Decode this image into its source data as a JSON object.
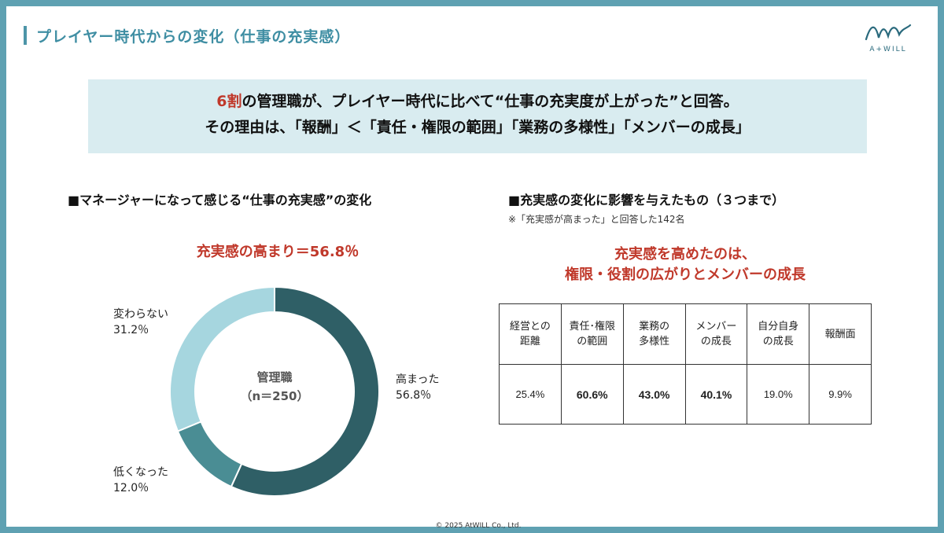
{
  "page": {
    "title": "プレイヤー時代からの変化（仕事の充実感）",
    "logo_text": "A+WILL",
    "footer": "© 2025 AtWILL  Co., Ltd."
  },
  "headline": {
    "line1_red": "6割",
    "line1_rest": "の管理職が、プレイヤー時代に比べて“仕事の充実度が上がった”と回答。",
    "line2": "その理由は、「報酬」＜「責任・権限の範囲」「業務の多様性」「メンバーの成長」"
  },
  "left": {
    "heading": "■マネージャーになって感じる“仕事の充実感”の変化",
    "highlight": "充実感の高まり＝56.8％",
    "center_line1": "管理職",
    "center_line2": "（n＝250）"
  },
  "right": {
    "heading": "■充実感の変化に影響を与えたもの（３つまで）",
    "note": "※「充実感が高まった」と回答した142名",
    "highlight_line1": "充実感を高めたのは、",
    "highlight_line2": "権限・役割の広がりとメンバーの成長"
  },
  "colors": {
    "frame": "#5fa1b2",
    "accent_red": "#c0392b",
    "headline_bg": "#d9ecf0",
    "increase": "#2f5f66",
    "decrease": "#4a8d94",
    "nochange": "#a6d6df"
  },
  "chart_data": [
    {
      "type": "pie",
      "title": "■マネージャーになって感じる“仕事の充実感”の変化",
      "subtitle": "充実感の高まり＝56.8％",
      "center_label": "管理職（n＝250）",
      "slices": [
        {
          "label_line1": "高まった",
          "label_line2": "56.8％",
          "value": 56.8
        },
        {
          "label_line1": "低くなった",
          "label_line2": "12.0％",
          "value": 12.0
        },
        {
          "label_line1": "変わらない",
          "label_line2": "31.2％",
          "value": 31.2
        }
      ]
    },
    {
      "type": "table",
      "title": "■充実感の変化に影響を与えたもの（３つまで）",
      "columns": [
        {
          "header_line1": "経営との",
          "header_line2": "距離",
          "value": "25.4%",
          "bold": false
        },
        {
          "header_line1": "責任･権限",
          "header_line2": "の範囲",
          "value": "60.6%",
          "bold": true
        },
        {
          "header_line1": "業務の",
          "header_line2": "多様性",
          "value": "43.0%",
          "bold": true
        },
        {
          "header_line1": "メンバー",
          "header_line2": "の成長",
          "value": "40.1%",
          "bold": true
        },
        {
          "header_line1": "自分自身",
          "header_line2": "の成長",
          "value": "19.0%",
          "bold": false
        },
        {
          "header_line1": "報酬面",
          "header_line2": "",
          "value": "9.9%",
          "bold": false
        }
      ]
    }
  ]
}
